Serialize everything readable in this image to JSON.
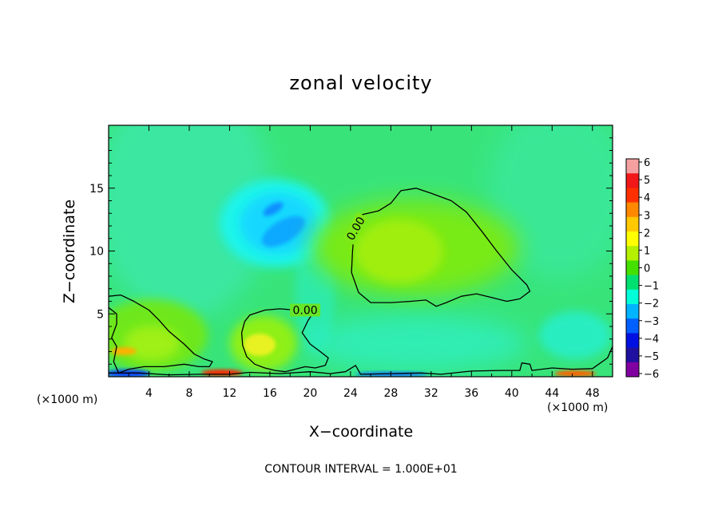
{
  "chart_data": {
    "type": "heatmap",
    "title": "zonal velocity",
    "xlabel": "X−coordinate",
    "ylabel": "Z−coordinate",
    "x_unit_left": "(×1000 m)",
    "x_unit_right": "(×1000 m)",
    "note": "CONTOUR INTERVAL = 1.000E+01",
    "xlim": [
      0,
      50
    ],
    "ylim": [
      0,
      20
    ],
    "x_ticks": [
      4,
      8,
      12,
      16,
      20,
      24,
      28,
      32,
      36,
      40,
      44,
      48
    ],
    "x_tick_labels": [
      "4",
      "8",
      "12",
      "16",
      "20",
      "24",
      "28",
      "32",
      "36",
      "40",
      "44",
      "48"
    ],
    "y_ticks": [
      5,
      10,
      15
    ],
    "y_tick_labels": [
      "5",
      "10",
      "15"
    ],
    "colorbar": {
      "ticks": [
        6,
        5,
        4,
        3,
        2,
        1,
        0,
        -1,
        -2,
        -3,
        -4,
        -5,
        -6
      ],
      "tick_labels": [
        "6",
        "5",
        "4",
        "3",
        "2",
        "1",
        "0",
        "−1",
        "−2",
        "−3",
        "−4",
        "−5",
        "−6"
      ],
      "colors": [
        "#f4a0a0",
        "#f01818",
        "#ff3000",
        "#ff8800",
        "#ffc800",
        "#ffff00",
        "#b4f000",
        "#44e000",
        "#00e070",
        "#00ffd8",
        "#00b4ff",
        "#0060ff",
        "#0010e0",
        "#2010a0",
        "#8000a0"
      ],
      "range": [
        -6,
        6
      ]
    },
    "contours": [
      {
        "level": 0,
        "label": "0.00",
        "label_at": [
          19.5,
          5.3
        ],
        "points": [
          [
            13.5,
            4.4
          ],
          [
            14.0,
            4.9
          ],
          [
            15.5,
            5.3
          ],
          [
            17.0,
            5.4
          ],
          [
            18.5,
            5.3
          ],
          [
            20.0,
            5.3
          ],
          [
            20.6,
            5.4
          ],
          [
            19.8,
            4.5
          ],
          [
            19.2,
            3.5
          ],
          [
            20.0,
            2.6
          ],
          [
            21.0,
            2.0
          ],
          [
            21.8,
            1.5
          ],
          [
            21.5,
            0.9
          ],
          [
            20.5,
            0.7
          ],
          [
            19.5,
            0.8
          ],
          [
            18.5,
            0.6
          ],
          [
            17.5,
            0.4
          ],
          [
            16.5,
            0.5
          ],
          [
            15.5,
            0.7
          ],
          [
            14.5,
            1.0
          ],
          [
            13.7,
            1.6
          ],
          [
            13.3,
            2.5
          ],
          [
            13.2,
            3.5
          ],
          [
            13.5,
            4.4
          ]
        ]
      },
      {
        "level": 0,
        "label": "0.00",
        "label_at": [
          24.5,
          11.8
        ],
        "points": [
          [
            24.2,
            10.0
          ],
          [
            24.4,
            11.8
          ],
          [
            25.2,
            12.9
          ],
          [
            26.8,
            13.2
          ],
          [
            28.0,
            13.8
          ],
          [
            29.0,
            14.8
          ],
          [
            30.5,
            15.0
          ],
          [
            32.0,
            14.6
          ],
          [
            34.0,
            14.0
          ],
          [
            35.5,
            13.1
          ],
          [
            37.0,
            11.6
          ],
          [
            38.5,
            10.0
          ],
          [
            40.0,
            8.5
          ],
          [
            41.5,
            7.3
          ],
          [
            41.8,
            6.8
          ],
          [
            40.8,
            6.2
          ],
          [
            39.5,
            6.0
          ],
          [
            38.0,
            6.3
          ],
          [
            36.5,
            6.6
          ],
          [
            35.0,
            6.4
          ],
          [
            33.5,
            5.9
          ],
          [
            32.5,
            5.6
          ],
          [
            31.5,
            6.1
          ],
          [
            30.0,
            6.0
          ],
          [
            28.0,
            5.9
          ],
          [
            26.0,
            5.9
          ],
          [
            24.8,
            6.7
          ],
          [
            24.1,
            8.3
          ],
          [
            24.2,
            10.0
          ]
        ]
      },
      {
        "level": 0,
        "label": "",
        "label_at": [
          0,
          0
        ],
        "points": [
          [
            0.0,
            6.4
          ],
          [
            1.2,
            6.5
          ],
          [
            2.5,
            6.0
          ],
          [
            4.0,
            5.3
          ],
          [
            5.0,
            4.5
          ],
          [
            6.0,
            3.6
          ],
          [
            7.5,
            2.6
          ],
          [
            8.5,
            1.8
          ],
          [
            9.5,
            1.4
          ],
          [
            10.3,
            1.2
          ],
          [
            10.0,
            0.8
          ],
          [
            9.0,
            0.8
          ],
          [
            7.5,
            1.0
          ],
          [
            5.5,
            0.8
          ],
          [
            3.5,
            0.8
          ],
          [
            2.0,
            0.6
          ],
          [
            1.0,
            0.3
          ],
          [
            0.5,
            1.2
          ],
          [
            0.8,
            2.4
          ],
          [
            0.3,
            3.1
          ],
          [
            0.8,
            4.2
          ],
          [
            0.8,
            5.0
          ],
          [
            0.0,
            5.5
          ]
        ]
      },
      {
        "level": 0,
        "label": "",
        "label_at": [
          0,
          0
        ],
        "points": [
          [
            0.0,
            0.3
          ],
          [
            3.0,
            0.3
          ],
          [
            6.0,
            0.15
          ],
          [
            9.0,
            0.2
          ],
          [
            12.0,
            0.2
          ],
          [
            14.0,
            0.35
          ],
          [
            17.0,
            0.25
          ],
          [
            20.0,
            0.4
          ],
          [
            22.0,
            0.25
          ],
          [
            23.5,
            0.4
          ],
          [
            24.5,
            0.9
          ],
          [
            25.0,
            0.2
          ],
          [
            28.0,
            0.25
          ],
          [
            31.0,
            0.3
          ],
          [
            33.0,
            0.2
          ],
          [
            36.0,
            0.45
          ],
          [
            39.0,
            0.5
          ],
          [
            40.8,
            0.5
          ],
          [
            41.0,
            1.1
          ],
          [
            41.8,
            1.0
          ],
          [
            42.0,
            0.5
          ],
          [
            44.0,
            0.7
          ],
          [
            46.0,
            0.6
          ],
          [
            48.0,
            0.65
          ],
          [
            49.5,
            1.5
          ],
          [
            50.0,
            2.4
          ]
        ]
      }
    ]
  }
}
